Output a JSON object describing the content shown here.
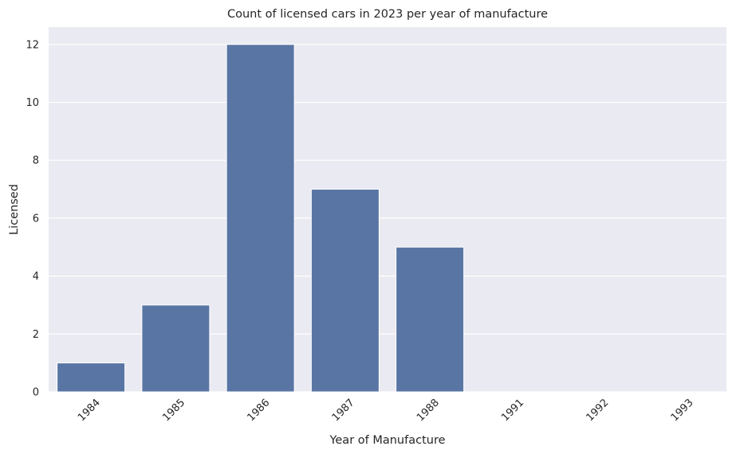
{
  "chart_data": {
    "type": "bar",
    "title": "Count of licensed cars in 2023 per year of manufacture",
    "xlabel": "Year of Manufacture",
    "ylabel": "Licensed",
    "categories": [
      "1984",
      "1985",
      "1986",
      "1987",
      "1988",
      "1991",
      "1992",
      "1993"
    ],
    "values": [
      1,
      3,
      12,
      7,
      5,
      0,
      0,
      0
    ],
    "ylim": [
      0,
      12.6
    ],
    "yticks": [
      0,
      2,
      4,
      6,
      8,
      10,
      12
    ],
    "grid": true,
    "legend": "none",
    "x_tick_rotation": 45
  },
  "colors": {
    "bar": "#5975a4",
    "background": "#eaeaf2",
    "grid": "#ffffff",
    "text": "#262626"
  }
}
